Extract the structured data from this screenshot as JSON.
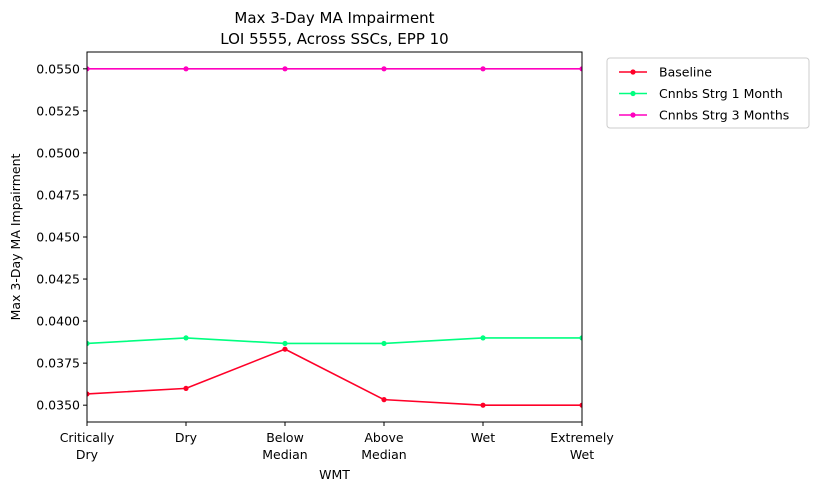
{
  "chart_data": {
    "type": "line",
    "title": [
      "Max 3-Day MA Impairment",
      "LOI 5555, Across SSCs, EPP 10"
    ],
    "xlabel": "WMT",
    "ylabel": "Max 3-Day MA Impairment",
    "categories": [
      [
        "Critically",
        "Dry"
      ],
      [
        "Dry"
      ],
      [
        "Below",
        "Median"
      ],
      [
        "Above",
        "Median"
      ],
      [
        "Wet"
      ],
      [
        "Extremely",
        "Wet"
      ]
    ],
    "ylim": [
      0.034,
      0.056
    ],
    "yticks": [
      0.035,
      0.0375,
      0.04,
      0.0425,
      0.045,
      0.0475,
      0.05,
      0.0525,
      0.055
    ],
    "ytick_labels": [
      "0.0350",
      "0.0375",
      "0.0400",
      "0.0425",
      "0.0450",
      "0.0475",
      "0.0500",
      "0.0525",
      "0.0550"
    ],
    "legend_position": "outside-top-right",
    "grid": false,
    "series": [
      {
        "name": "Baseline",
        "color": "#ff0028",
        "values": [
          0.03567,
          0.036,
          0.03833,
          0.03533,
          0.035,
          0.035
        ]
      },
      {
        "name": "Cnnbs Strg 1 Month",
        "color": "#00ff80",
        "values": [
          0.03867,
          0.039,
          0.03867,
          0.03867,
          0.039,
          0.039
        ]
      },
      {
        "name": "Cnnbs Strg 3 Months",
        "color": "#ff00bf",
        "values": [
          0.055,
          0.055,
          0.055,
          0.055,
          0.055,
          0.055
        ]
      }
    ]
  }
}
